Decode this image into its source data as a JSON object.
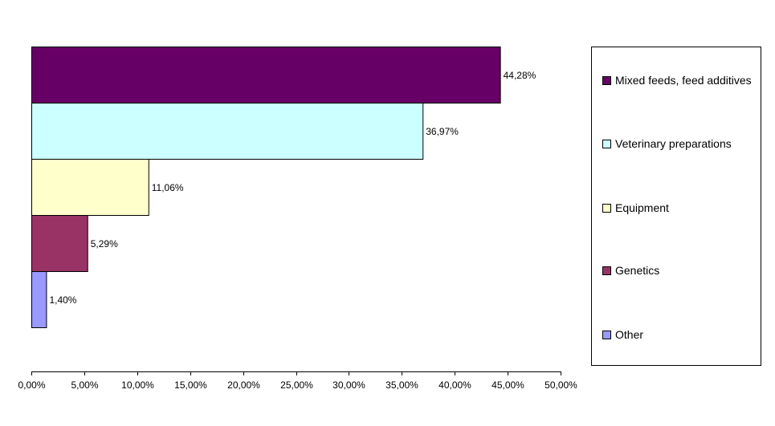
{
  "chart_data": {
    "type": "bar",
    "orientation": "horizontal",
    "categories": [
      "Mixed feeds, feed additives",
      "Veterinary preparations",
      "Equipment",
      "Genetics",
      "Other"
    ],
    "values": [
      44.28,
      36.97,
      11.06,
      5.29,
      1.4
    ],
    "data_labels": [
      "44,28%",
      "36,97%",
      "11,06%",
      "5,29%",
      "1,40%"
    ],
    "colors": [
      "#660066",
      "#ccffff",
      "#ffffcc",
      "#993366",
      "#9999ff"
    ],
    "xlim": [
      0,
      50
    ],
    "x_ticks": [
      0,
      5,
      10,
      15,
      20,
      25,
      30,
      35,
      40,
      45,
      50
    ],
    "x_tick_labels": [
      "0,00%",
      "5,00%",
      "10,00%",
      "15,00%",
      "20,00%",
      "25,00%",
      "30,00%",
      "35,00%",
      "40,00%",
      "45,00%",
      "50,00%"
    ],
    "grid": false,
    "legend_position": "right",
    "title": "",
    "xlabel": "",
    "ylabel": ""
  }
}
